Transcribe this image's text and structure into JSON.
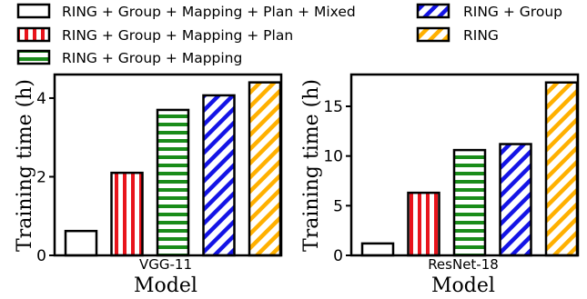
{
  "legend": [
    {
      "label": "RING + Group + Mapping + Plan + Mixed",
      "color": "#ffffff",
      "pattern": "none"
    },
    {
      "label": "RING + Group + Mapping + Plan",
      "color": "#e8141c",
      "pattern": "vertical"
    },
    {
      "label": "RING + Group + Mapping",
      "color": "#1a8c1a",
      "pattern": "horizontal"
    },
    {
      "label": "RING + Group",
      "color": "#1414e6",
      "pattern": "diagonal"
    },
    {
      "label": "RING",
      "color": "#ffb000",
      "pattern": "diagonal"
    }
  ],
  "chart_data": [
    {
      "type": "bar",
      "categories": [
        "VGG-11"
      ],
      "series": [
        {
          "name": "RING + Group + Mapping + Plan + Mixed",
          "values": [
            0.62
          ]
        },
        {
          "name": "RING + Group + Mapping + Plan",
          "values": [
            2.1
          ]
        },
        {
          "name": "RING + Group + Mapping",
          "values": [
            3.7
          ]
        },
        {
          "name": "RING + Group",
          "values": [
            4.07
          ]
        },
        {
          "name": "RING",
          "values": [
            4.4
          ]
        }
      ],
      "xlabel": "Model",
      "ylabel": "Training time (h)",
      "ylim": [
        0,
        4.6
      ],
      "yticks": [
        0,
        2,
        4
      ],
      "grid": false,
      "legend_position": "top"
    },
    {
      "type": "bar",
      "categories": [
        "ResNet-18"
      ],
      "series": [
        {
          "name": "RING + Group + Mapping + Plan + Mixed",
          "values": [
            1.2
          ]
        },
        {
          "name": "RING + Group + Mapping + Plan",
          "values": [
            6.3
          ]
        },
        {
          "name": "RING + Group + Mapping",
          "values": [
            10.6
          ]
        },
        {
          "name": "RING + Group",
          "values": [
            11.2
          ]
        },
        {
          "name": "RING",
          "values": [
            17.4
          ]
        }
      ],
      "xlabel": "Model",
      "ylabel": "Training time (h)",
      "ylim": [
        0,
        18.2
      ],
      "yticks": [
        0,
        5,
        10,
        15
      ],
      "grid": false,
      "legend_position": "top"
    }
  ]
}
